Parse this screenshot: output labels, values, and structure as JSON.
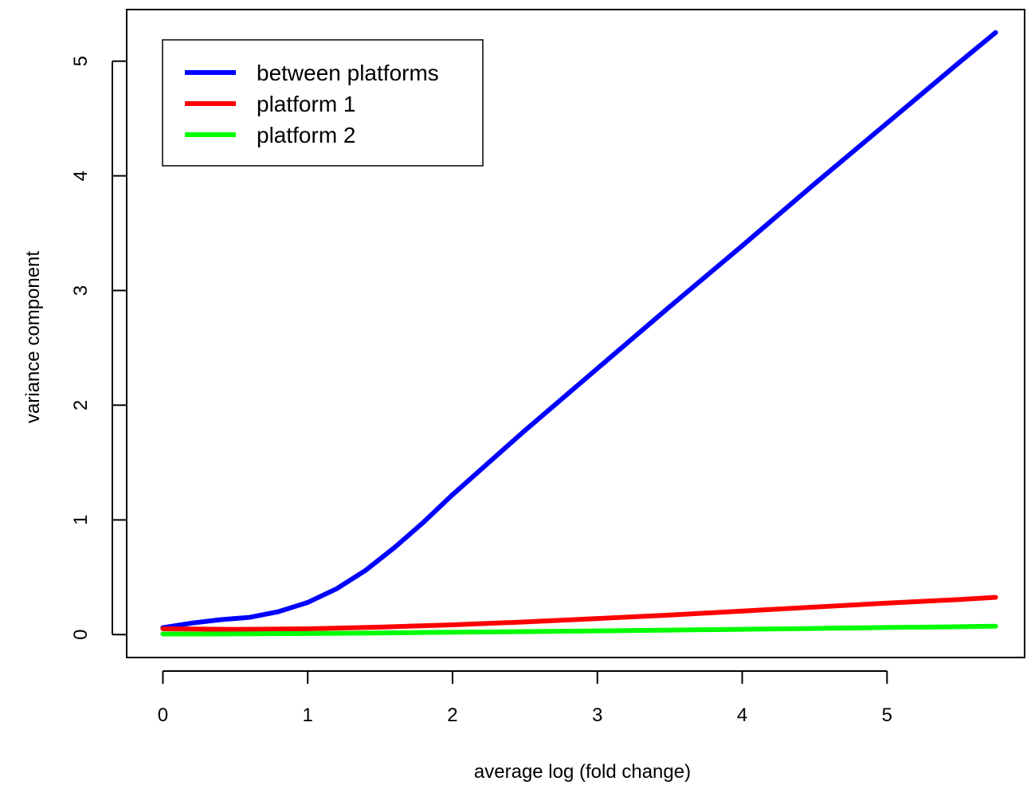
{
  "chart_data": {
    "type": "line",
    "xlabel": "average log (fold change)",
    "ylabel": "variance component",
    "xlim": [
      -0.25,
      5.95
    ],
    "ylim": [
      -0.2,
      5.45
    ],
    "xticks": [
      0,
      1,
      2,
      3,
      4,
      5
    ],
    "xtick_labels": [
      "0",
      "1",
      "2",
      "3",
      "4",
      "5"
    ],
    "yticks": [
      0,
      1,
      2,
      3,
      4,
      5
    ],
    "ytick_labels": [
      "0",
      "1",
      "2",
      "3",
      "4",
      "5"
    ],
    "grid": false,
    "legend_position": "top-left",
    "series": [
      {
        "name": "between platforms",
        "color": "#0000ff",
        "x": [
          0,
          0.2,
          0.4,
          0.6,
          0.8,
          1.0,
          1.2,
          1.4,
          1.6,
          1.8,
          2.0,
          2.5,
          3.0,
          3.5,
          4.0,
          4.5,
          5.0,
          5.5,
          5.75
        ],
        "y": [
          0.06,
          0.1,
          0.13,
          0.15,
          0.2,
          0.28,
          0.4,
          0.56,
          0.76,
          0.98,
          1.22,
          1.78,
          2.32,
          2.86,
          3.39,
          3.93,
          4.46,
          4.99,
          5.25
        ]
      },
      {
        "name": "platform 1",
        "color": "#ff0000",
        "x": [
          0,
          0.5,
          1.0,
          1.5,
          2.0,
          2.5,
          3.0,
          3.5,
          4.0,
          4.5,
          5.0,
          5.5,
          5.75
        ],
        "y": [
          0.05,
          0.045,
          0.05,
          0.065,
          0.085,
          0.11,
          0.14,
          0.17,
          0.205,
          0.24,
          0.275,
          0.305,
          0.325
        ]
      },
      {
        "name": "platform 2",
        "color": "#00ff00",
        "x": [
          0,
          0.5,
          1.0,
          1.5,
          2.0,
          2.5,
          3.0,
          3.5,
          4.0,
          4.5,
          5.0,
          5.5,
          5.75
        ],
        "y": [
          0.005,
          0.006,
          0.009,
          0.014,
          0.02,
          0.026,
          0.032,
          0.039,
          0.046,
          0.054,
          0.061,
          0.068,
          0.073
        ]
      }
    ]
  }
}
